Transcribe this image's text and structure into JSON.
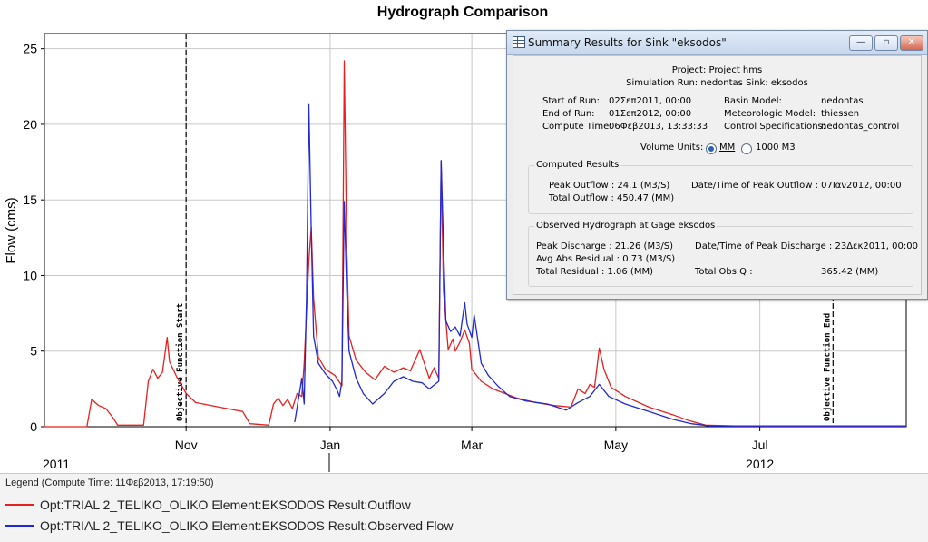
{
  "chart_data": {
    "type": "line",
    "title": "Hydrograph Comparison",
    "ylabel": "Flow (cms)",
    "xlabel": "",
    "ylim": [
      0,
      26
    ],
    "yticks": [
      0,
      5,
      10,
      15,
      20,
      25
    ],
    "xlim": [
      "2011-09-02",
      "2012-09-01"
    ],
    "xticks": [
      {
        "date": "2011-11-01",
        "label": "Nov"
      },
      {
        "date": "2012-01-01",
        "label": "Jan"
      },
      {
        "date": "2012-03-01",
        "label": "Mar"
      },
      {
        "date": "2012-05-01",
        "label": "May"
      },
      {
        "date": "2012-07-01",
        "label": "Jul"
      }
    ],
    "year_labels": [
      {
        "date": "2011-09-07",
        "label": "2011"
      },
      {
        "date": "2012-07-01",
        "label": "2012"
      }
    ],
    "grid": true,
    "markers": [
      {
        "date": "2011-11-01",
        "label": "Objective Function Start"
      },
      {
        "date": "2012-08-01",
        "label": "Objective Function End"
      }
    ],
    "series": [
      {
        "name": "Opt:TRIAL 2_TELIKO_OLIKO Element:EKSODOS Result:Outflow",
        "color": "#e62020",
        "points": [
          [
            "2011-09-02",
            0
          ],
          [
            "2011-09-20",
            0
          ],
          [
            "2011-09-22",
            1.8
          ],
          [
            "2011-09-25",
            1.4
          ],
          [
            "2011-09-28",
            1.2
          ],
          [
            "2011-10-01",
            0.6
          ],
          [
            "2011-10-03",
            0.1
          ],
          [
            "2011-10-14",
            0.1
          ],
          [
            "2011-10-16",
            3.0
          ],
          [
            "2011-10-18",
            3.8
          ],
          [
            "2011-10-20",
            3.2
          ],
          [
            "2011-10-22",
            3.6
          ],
          [
            "2011-10-24",
            5.9
          ],
          [
            "2011-10-25",
            4.3
          ],
          [
            "2011-10-28",
            3.3
          ],
          [
            "2011-11-01",
            2.2
          ],
          [
            "2011-11-05",
            1.6
          ],
          [
            "2011-11-15",
            1.3
          ],
          [
            "2011-11-25",
            1.0
          ],
          [
            "2011-11-28",
            0.2
          ],
          [
            "2011-12-06",
            0.1
          ],
          [
            "2011-12-08",
            1.5
          ],
          [
            "2011-12-10",
            1.9
          ],
          [
            "2011-12-12",
            1.4
          ],
          [
            "2011-12-14",
            1.8
          ],
          [
            "2011-12-16",
            1.2
          ],
          [
            "2011-12-18",
            2.2
          ],
          [
            "2011-12-20",
            2.0
          ],
          [
            "2011-12-21",
            4.2
          ],
          [
            "2011-12-23",
            11.0
          ],
          [
            "2011-12-24",
            13.2
          ],
          [
            "2011-12-25",
            8.5
          ],
          [
            "2011-12-27",
            4.6
          ],
          [
            "2011-12-30",
            3.8
          ],
          [
            "2012-01-03",
            3.4
          ],
          [
            "2012-01-06",
            2.7
          ],
          [
            "2012-01-07",
            24.2
          ],
          [
            "2012-01-08",
            12.0
          ],
          [
            "2012-01-09",
            6.0
          ],
          [
            "2012-01-12",
            4.4
          ],
          [
            "2012-01-16",
            3.6
          ],
          [
            "2012-01-20",
            3.1
          ],
          [
            "2012-01-24",
            4.0
          ],
          [
            "2012-01-28",
            3.6
          ],
          [
            "2012-02-01",
            3.9
          ],
          [
            "2012-02-04",
            3.7
          ],
          [
            "2012-02-08",
            5.1
          ],
          [
            "2012-02-12",
            3.2
          ],
          [
            "2012-02-14",
            3.9
          ],
          [
            "2012-02-16",
            3.2
          ],
          [
            "2012-02-17",
            17.6
          ],
          [
            "2012-02-18",
            9.0
          ],
          [
            "2012-02-20",
            5.1
          ],
          [
            "2012-02-22",
            5.8
          ],
          [
            "2012-02-23",
            5.0
          ],
          [
            "2012-02-25",
            5.6
          ],
          [
            "2012-02-27",
            6.4
          ],
          [
            "2012-02-29",
            5.5
          ],
          [
            "2012-03-01",
            3.8
          ],
          [
            "2012-03-05",
            3.0
          ],
          [
            "2012-03-10",
            2.5
          ],
          [
            "2012-03-15",
            2.2
          ],
          [
            "2012-03-20",
            1.9
          ],
          [
            "2012-03-28",
            1.6
          ],
          [
            "2012-04-05",
            1.4
          ],
          [
            "2012-04-12",
            1.3
          ],
          [
            "2012-04-15",
            2.5
          ],
          [
            "2012-04-18",
            2.2
          ],
          [
            "2012-04-20",
            2.8
          ],
          [
            "2012-04-22",
            2.6
          ],
          [
            "2012-04-24",
            5.2
          ],
          [
            "2012-04-26",
            3.8
          ],
          [
            "2012-04-29",
            2.6
          ],
          [
            "2012-05-05",
            2.0
          ],
          [
            "2012-05-15",
            1.3
          ],
          [
            "2012-05-25",
            0.8
          ],
          [
            "2012-06-01",
            0.4
          ],
          [
            "2012-06-08",
            0.1
          ],
          [
            "2012-06-20",
            0.05
          ],
          [
            "2012-09-01",
            0.05
          ]
        ]
      },
      {
        "name": "Opt:TRIAL 2_TELIKO_OLIKO Element:EKSODOS Result:Observed Flow",
        "color": "#1e28d8",
        "points": [
          [
            "2011-12-17",
            0.3
          ],
          [
            "2011-12-20",
            3.2
          ],
          [
            "2011-12-21",
            1.5
          ],
          [
            "2011-12-22",
            8.5
          ],
          [
            "2011-12-23",
            21.3
          ],
          [
            "2011-12-24",
            13.0
          ],
          [
            "2011-12-25",
            6.0
          ],
          [
            "2011-12-27",
            4.2
          ],
          [
            "2011-12-30",
            3.5
          ],
          [
            "2012-01-02",
            3.0
          ],
          [
            "2012-01-04",
            2.4
          ],
          [
            "2012-01-05",
            2.0
          ],
          [
            "2012-01-06",
            3.0
          ],
          [
            "2012-01-07",
            14.9
          ],
          [
            "2012-01-08",
            9.0
          ],
          [
            "2012-01-09",
            5.0
          ],
          [
            "2012-01-12",
            3.2
          ],
          [
            "2012-01-15",
            2.2
          ],
          [
            "2012-01-19",
            1.5
          ],
          [
            "2012-01-24",
            2.2
          ],
          [
            "2012-01-28",
            3.0
          ],
          [
            "2012-02-01",
            3.3
          ],
          [
            "2012-02-05",
            3.0
          ],
          [
            "2012-02-09",
            2.9
          ],
          [
            "2012-02-12",
            2.5
          ],
          [
            "2012-02-16",
            3.0
          ],
          [
            "2012-02-17",
            17.6
          ],
          [
            "2012-02-18",
            12.0
          ],
          [
            "2012-02-19",
            7.0
          ],
          [
            "2012-02-21",
            6.3
          ],
          [
            "2012-02-23",
            6.6
          ],
          [
            "2012-02-25",
            6.0
          ],
          [
            "2012-02-27",
            8.2
          ],
          [
            "2012-02-28",
            6.8
          ],
          [
            "2012-03-01",
            5.9
          ],
          [
            "2012-03-02",
            7.4
          ],
          [
            "2012-03-05",
            4.2
          ],
          [
            "2012-03-08",
            3.4
          ],
          [
            "2012-03-12",
            2.7
          ],
          [
            "2012-03-17",
            2.0
          ],
          [
            "2012-03-24",
            1.7
          ],
          [
            "2012-04-02",
            1.5
          ],
          [
            "2012-04-10",
            1.1
          ],
          [
            "2012-04-15",
            1.6
          ],
          [
            "2012-04-20",
            2.0
          ],
          [
            "2012-04-24",
            2.8
          ],
          [
            "2012-04-28",
            2.0
          ],
          [
            "2012-05-05",
            1.5
          ],
          [
            "2012-05-15",
            1.0
          ],
          [
            "2012-05-25",
            0.5
          ],
          [
            "2012-06-02",
            0.2
          ],
          [
            "2012-06-10",
            0.05
          ],
          [
            "2012-09-01",
            0.05
          ]
        ]
      }
    ]
  },
  "legend": {
    "title": "Legend (Compute Time: 11Φεβ2013, 17:19:50)",
    "items": [
      {
        "label": "Opt:TRIAL 2_TELIKO_OLIKO Element:EKSODOS Result:Outflow",
        "color": "#e62020"
      },
      {
        "label": "Opt:TRIAL 2_TELIKO_OLIKO Element:EKSODOS Result:Observed Flow",
        "color": "#1e28d8"
      }
    ]
  },
  "dialog": {
    "title": "Summary Results for Sink \"eksodos\"",
    "window_buttons": {
      "minimize": "—",
      "maximize": "▫",
      "close": "✕"
    },
    "project": "Project: Project hms",
    "simulation_line": "Simulation Run: nedontas    Sink: eksodos",
    "start_label": "Start of Run:",
    "start_value": "02Σεπ2011, 00:00",
    "end_label": "End of Run:",
    "end_value": "01Σεπ2012, 00:00",
    "compute_label": "Compute Time:",
    "compute_value": "06Φεβ2013, 13:33:33",
    "basin_label": "Basin Model:",
    "basin_value": "nedontas",
    "met_label": "Meteorologic Model:",
    "met_value": "thiessen",
    "control_label": "Control Specifications:",
    "control_value": "nedontas_control",
    "volume_units_label": "Volume Units:",
    "volume_units_options": [
      "MM",
      "1000 M3"
    ],
    "volume_units_selected": "MM",
    "computed": {
      "title": "Computed Results",
      "peak_outflow": "Peak Outflow : 24.1 (M3/S)",
      "total_outflow": "Total Outflow : 450.47 (MM)",
      "peak_time": "Date/Time of Peak Outflow : 07Ιαν2012, 00:00"
    },
    "observed": {
      "title": "Observed Hydrograph at Gage eksodos",
      "peak_discharge": "Peak Discharge :   21.26 (M3/S)",
      "avg_abs_residual": "Avg Abs Residual : 0.73 (M3/S)",
      "total_residual": "Total Residual :     1.06 (MM)",
      "peak_time": "Date/Time of Peak Discharge : 23Δεκ2011, 00:00",
      "total_obs_label": "Total Obs Q :",
      "total_obs_value": "365.42 (MM)"
    }
  }
}
